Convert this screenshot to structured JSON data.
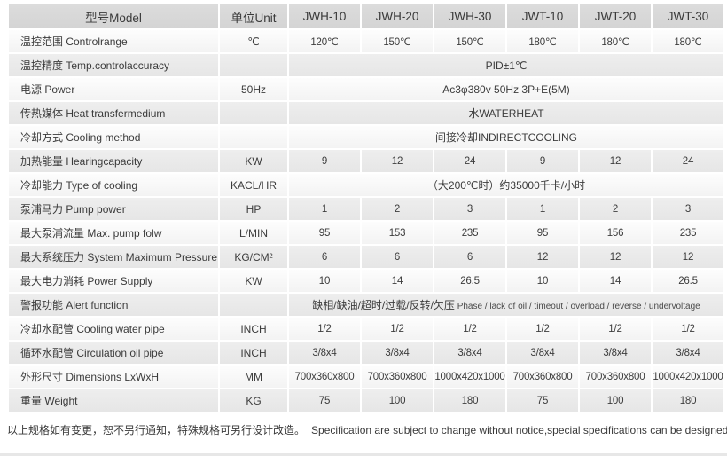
{
  "table": {
    "header": [
      "型号Model",
      "单位Unit",
      "JWH-10",
      "JWH-20",
      "JWH-30",
      "JWT-10",
      "JWT-20",
      "JWT-30"
    ],
    "rows": [
      {
        "label": "温控范围 Controlrange",
        "unit": "℃",
        "values": [
          "120℃",
          "150℃",
          "150℃",
          "180℃",
          "180℃",
          "180℃"
        ]
      },
      {
        "label": "温控精度 Temp.controlaccuracy",
        "unit": "",
        "span": "PID±1℃"
      },
      {
        "label": "电源 Power",
        "unit": "50Hz",
        "span": "Ac3φ380v 50Hz 3P+E(5M)"
      },
      {
        "label": "传热媒体 Heat transfermedium",
        "unit": "",
        "span": "水WATERHEAT"
      },
      {
        "label": "冷却方式 Cooling method",
        "unit": "",
        "span": "间接冷却INDIRECTCOOLING"
      },
      {
        "label": "加热能量 Hearingcapacity",
        "unit": "KW",
        "values": [
          "9",
          "12",
          "24",
          "9",
          "12",
          "24"
        ]
      },
      {
        "label": "冷却能力 Type of cooling",
        "unit": "KACL/HR",
        "span": "（大200℃时）约35000千卡/小时"
      },
      {
        "label": "泵浦马力 Pump power",
        "unit": "HP",
        "values": [
          "1",
          "2",
          "3",
          "1",
          "2",
          "3"
        ]
      },
      {
        "label": "最大泵浦流量 Max. pump folw",
        "unit": "L/MIN",
        "values": [
          "95",
          "153",
          "235",
          "95",
          "156",
          "235"
        ]
      },
      {
        "label": "最大系统压力 System Maximum Pressure",
        "unit": "KG/CM²",
        "values": [
          "6",
          "6",
          "6",
          "12",
          "12",
          "12"
        ]
      },
      {
        "label": "最大电力消耗 Power Supply",
        "unit": "KW",
        "values": [
          "10",
          "14",
          "26.5",
          "10",
          "14",
          "26.5"
        ]
      },
      {
        "label": "警报功能 Alert function",
        "unit": "",
        "span_cn": "缺相/缺油/超时/过载/反转/欠压",
        "span_en": "Phase / lack of oil / timeout / overload / reverse / undervoltage"
      },
      {
        "label": "冷却水配管 Cooling water pipe",
        "unit": "INCH",
        "values": [
          "1/2",
          "1/2",
          "1/2",
          "1/2",
          "1/2",
          "1/2"
        ]
      },
      {
        "label": "循环水配管 Circulation oil pipe",
        "unit": "INCH",
        "values": [
          "3/8x4",
          "3/8x4",
          "3/8x4",
          "3/8x4",
          "3/8x4",
          "3/8x4"
        ]
      },
      {
        "label": "外形尺寸 Dimensions LxWxH",
        "unit": "MM",
        "values": [
          "700x360x800",
          "700x360x800",
          "1000x420x1000",
          "700x360x800",
          "700x360x800",
          "1000x420x1000"
        ]
      },
      {
        "label": "重量 Weight",
        "unit": "KG",
        "values": [
          "75",
          "100",
          "180",
          "75",
          "100",
          "180"
        ]
      }
    ]
  },
  "footer": {
    "note_cn": "以上规格如有变更，恕不另行通知，特殊规格可另行设计改造。",
    "note_en": "Specification are subject to change without notice,special specifications can be designed transformation."
  },
  "colors": {
    "header_bg": "#d8d8d8",
    "row_light_bg": "#f7f7f7",
    "row_gray_bg": "#e9e9e9",
    "text": "#3c3c3c"
  }
}
